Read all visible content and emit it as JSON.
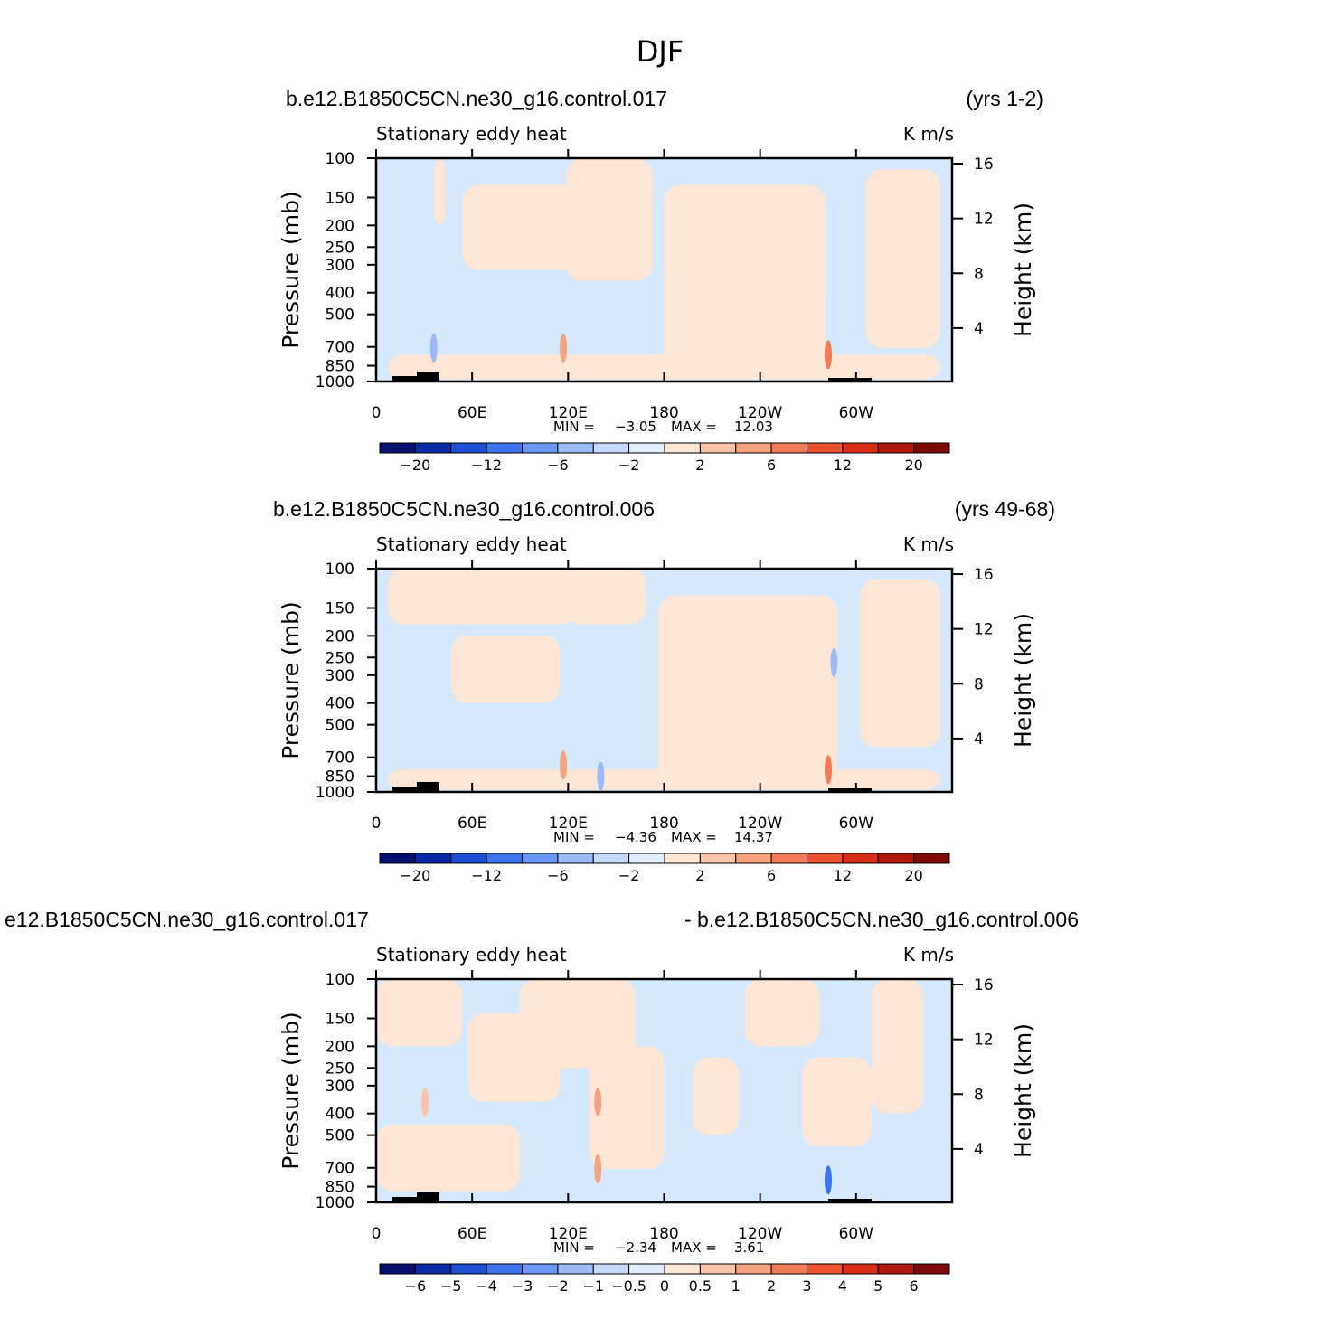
{
  "figure": {
    "title": "DJF"
  },
  "chart_data": [
    {
      "type": "contour",
      "case_label": "b.e12.B1850C5CN.ne30_g16.control.017",
      "years_label": "(yrs 1-2)",
      "title": "Stationary eddy heat",
      "units": "K m/s",
      "ylabel": "Pressure (mb)",
      "y2label": "Height (km)",
      "xticks": [
        "0",
        "60E",
        "120E",
        "180",
        "120W",
        "60W"
      ],
      "yticks": [
        "100",
        "150",
        "200",
        "250",
        "300",
        "400",
        "500",
        "700",
        "850",
        "1000"
      ],
      "y2ticks": [
        "16",
        "12",
        "8",
        "4"
      ],
      "ylim": [
        1000,
        100
      ],
      "stats": {
        "min_label": "MIN =",
        "min": "-3.05",
        "max_label": "MAX =",
        "max": "12.03"
      },
      "colorbar_labels": [
        "-20",
        "-12",
        "-6",
        "-2",
        "2",
        "6",
        "12",
        "20"
      ]
    },
    {
      "type": "contour",
      "case_label": "b.e12.B1850C5CN.ne30_g16.control.006",
      "years_label": "(yrs 49-68)",
      "title": "Stationary eddy heat",
      "units": "K m/s",
      "ylabel": "Pressure (mb)",
      "y2label": "Height (km)",
      "xticks": [
        "0",
        "60E",
        "120E",
        "180",
        "120W",
        "60W"
      ],
      "yticks": [
        "100",
        "150",
        "200",
        "250",
        "300",
        "400",
        "500",
        "700",
        "850",
        "1000"
      ],
      "y2ticks": [
        "16",
        "12",
        "8",
        "4"
      ],
      "ylim": [
        1000,
        100
      ],
      "stats": {
        "min_label": "MIN =",
        "min": "-4.36",
        "max_label": "MAX =",
        "max": "14.37"
      },
      "colorbar_labels": [
        "-20",
        "-12",
        "-6",
        "-2",
        "2",
        "6",
        "12",
        "20"
      ]
    },
    {
      "type": "contour",
      "case_label": "e12.B1850C5CN.ne30_g16.control.017",
      "years_label": "- b.e12.B1850C5CN.ne30_g16.control.006",
      "title": "Stationary eddy heat",
      "units": "K m/s",
      "ylabel": "Pressure (mb)",
      "y2label": "Height (km)",
      "xticks": [
        "0",
        "60E",
        "120E",
        "180",
        "120W",
        "60W"
      ],
      "yticks": [
        "100",
        "150",
        "200",
        "250",
        "300",
        "400",
        "500",
        "700",
        "850",
        "1000"
      ],
      "y2ticks": [
        "16",
        "12",
        "8",
        "4"
      ],
      "ylim": [
        1000,
        100
      ],
      "stats": {
        "min_label": "MIN =",
        "min": "-2.34",
        "max_label": "MAX =",
        "max": "3.61"
      },
      "colorbar_labels": [
        "-6",
        "-5",
        "-4",
        "-3",
        "-2",
        "-1",
        "-0.5",
        "0",
        "0.5",
        "1",
        "2",
        "3",
        "4",
        "5",
        "6"
      ]
    }
  ],
  "colors": {
    "negative_fill": "#d6e8fb",
    "positive_fill": "#fde6d6",
    "colorbar": [
      "#08106f",
      "#0b2aa8",
      "#1f4fd4",
      "#3d74ee",
      "#6b98f5",
      "#9bbaf6",
      "#c6d9f8",
      "#e2eefc",
      "#fde6d6",
      "#f9c5aa",
      "#f5a280",
      "#f27b57",
      "#ec5230",
      "#d82e17",
      "#b0170d",
      "#7d0a08"
    ]
  }
}
